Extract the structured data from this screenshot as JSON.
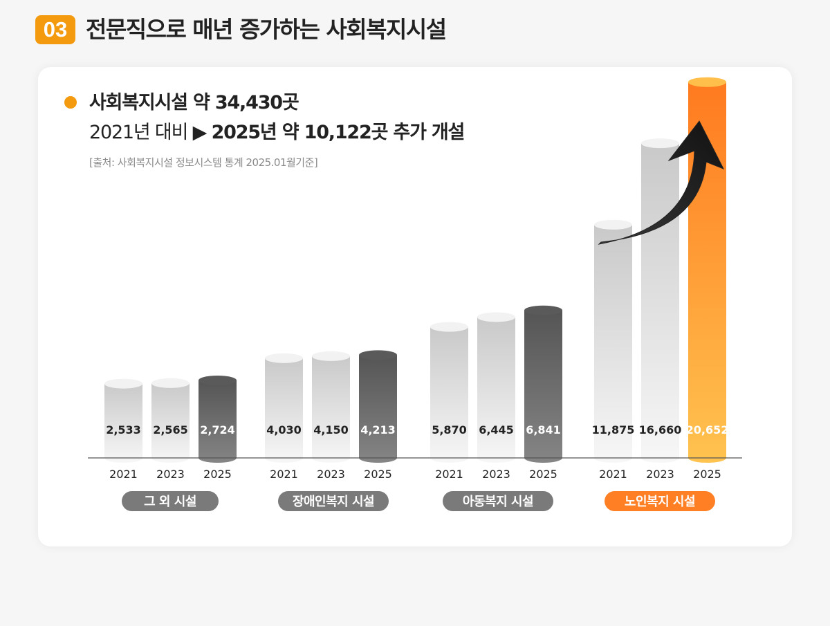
{
  "section": {
    "number": "03",
    "title": "전문직으로 매년 증가하는 사회복지시설"
  },
  "summary": {
    "headline": "사회복지시설 약 34,430곳",
    "comparison_prefix": "2021년 대비",
    "arrow_glyph": "▶",
    "comparison_bold": "2025년 약 10,122곳 추가 개설",
    "source": "[출처: 사회복지시설 정보시스템 통계 2025.01월기준]"
  },
  "colors": {
    "accent": "#f39a0f",
    "highlight_bar": "#ff7f24",
    "dark_bar": "#5c5c5c",
    "light_bar": "#e0e0e0",
    "label_pill": "#7a7a7a"
  },
  "chart_data": {
    "type": "bar",
    "x_labels": [
      "2021",
      "2023",
      "2025"
    ],
    "groups": [
      {
        "name": "그 외 시설",
        "values": [
          2533,
          2565,
          2724
        ],
        "value_labels": [
          "2,533",
          "2,565",
          "2,724"
        ],
        "highlight": false
      },
      {
        "name": "장애인복지 시설",
        "values": [
          4030,
          4150,
          4213
        ],
        "value_labels": [
          "4,030",
          "4,150",
          "4,213"
        ],
        "highlight": false
      },
      {
        "name": "아동복지 시설",
        "values": [
          5870,
          6445,
          6841
        ],
        "value_labels": [
          "5,870",
          "6,445",
          "6,841"
        ],
        "highlight": false
      },
      {
        "name": "노인복지 시설",
        "values": [
          11875,
          16660,
          20652
        ],
        "value_labels": [
          "11,875",
          "16,660",
          "20,652"
        ],
        "highlight": true
      }
    ]
  }
}
